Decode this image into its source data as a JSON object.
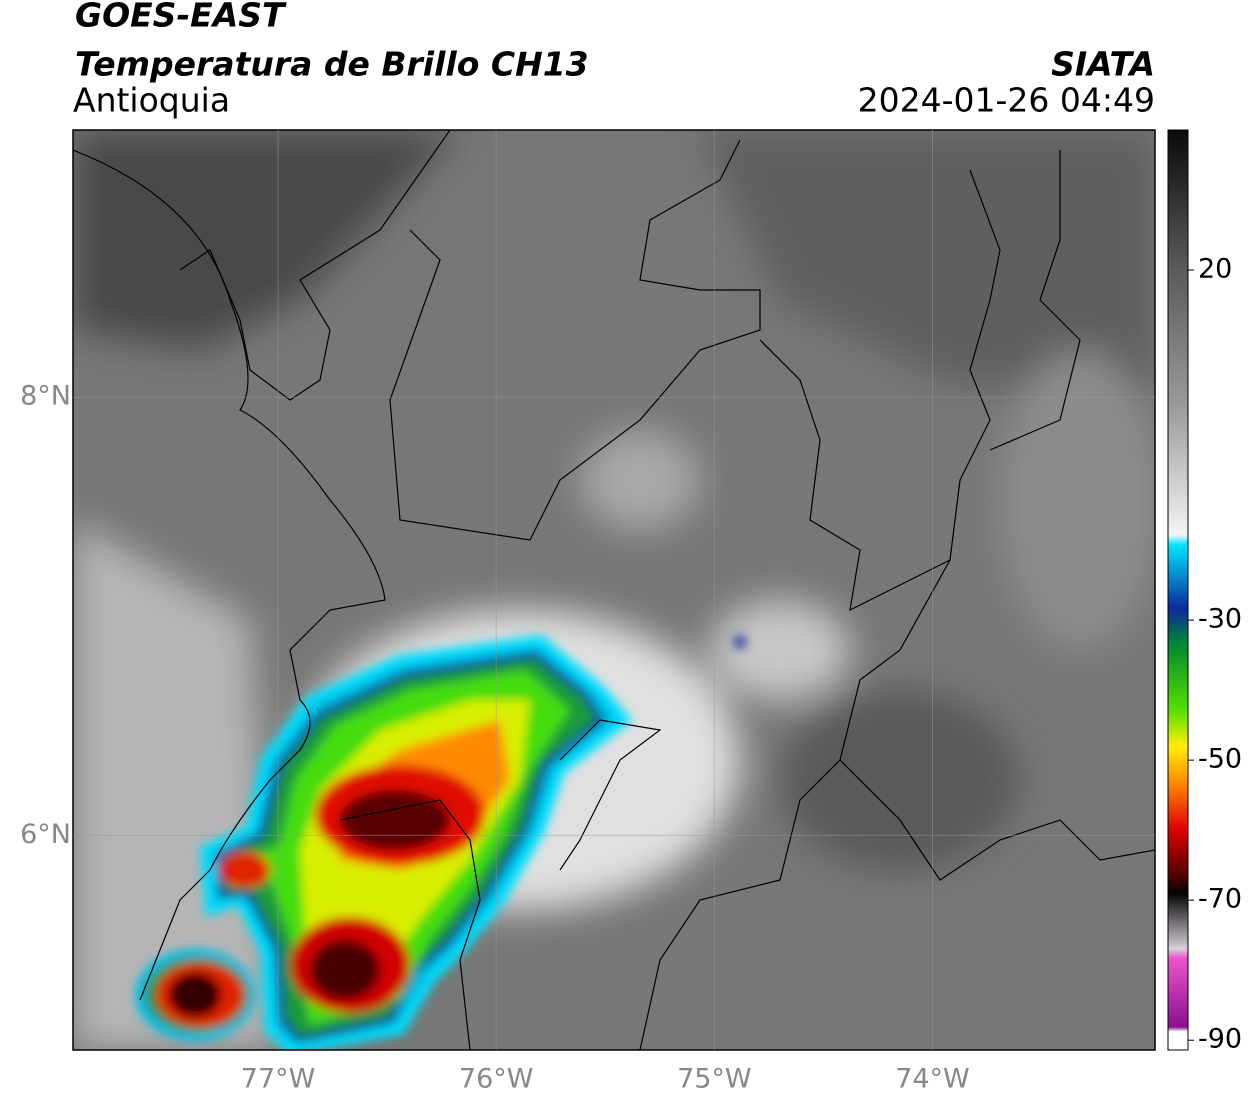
{
  "header": {
    "title": "GOES-EAST",
    "subtitle": "Temperatura de Brillo CH13",
    "region": "Antioquia",
    "source": "SIATA",
    "timestamp": "2024-01-26 04:49"
  },
  "map": {
    "xlim": [
      -77.94,
      -72.98
    ],
    "ylim": [
      5.02,
      9.22
    ],
    "xticks": [
      {
        "value": -77,
        "label": "77°W"
      },
      {
        "value": -76,
        "label": "76°W"
      },
      {
        "value": -75,
        "label": "75°W"
      },
      {
        "value": -74,
        "label": "74°W"
      }
    ],
    "yticks": [
      {
        "value": 6,
        "label": "6°N"
      },
      {
        "value": 8,
        "label": "8°N"
      }
    ],
    "grid": true
  },
  "colorbar": {
    "lim": [
      -91.4,
      40
    ],
    "ticks": [
      -90,
      -70,
      -50,
      -30,
      20
    ]
  }
}
